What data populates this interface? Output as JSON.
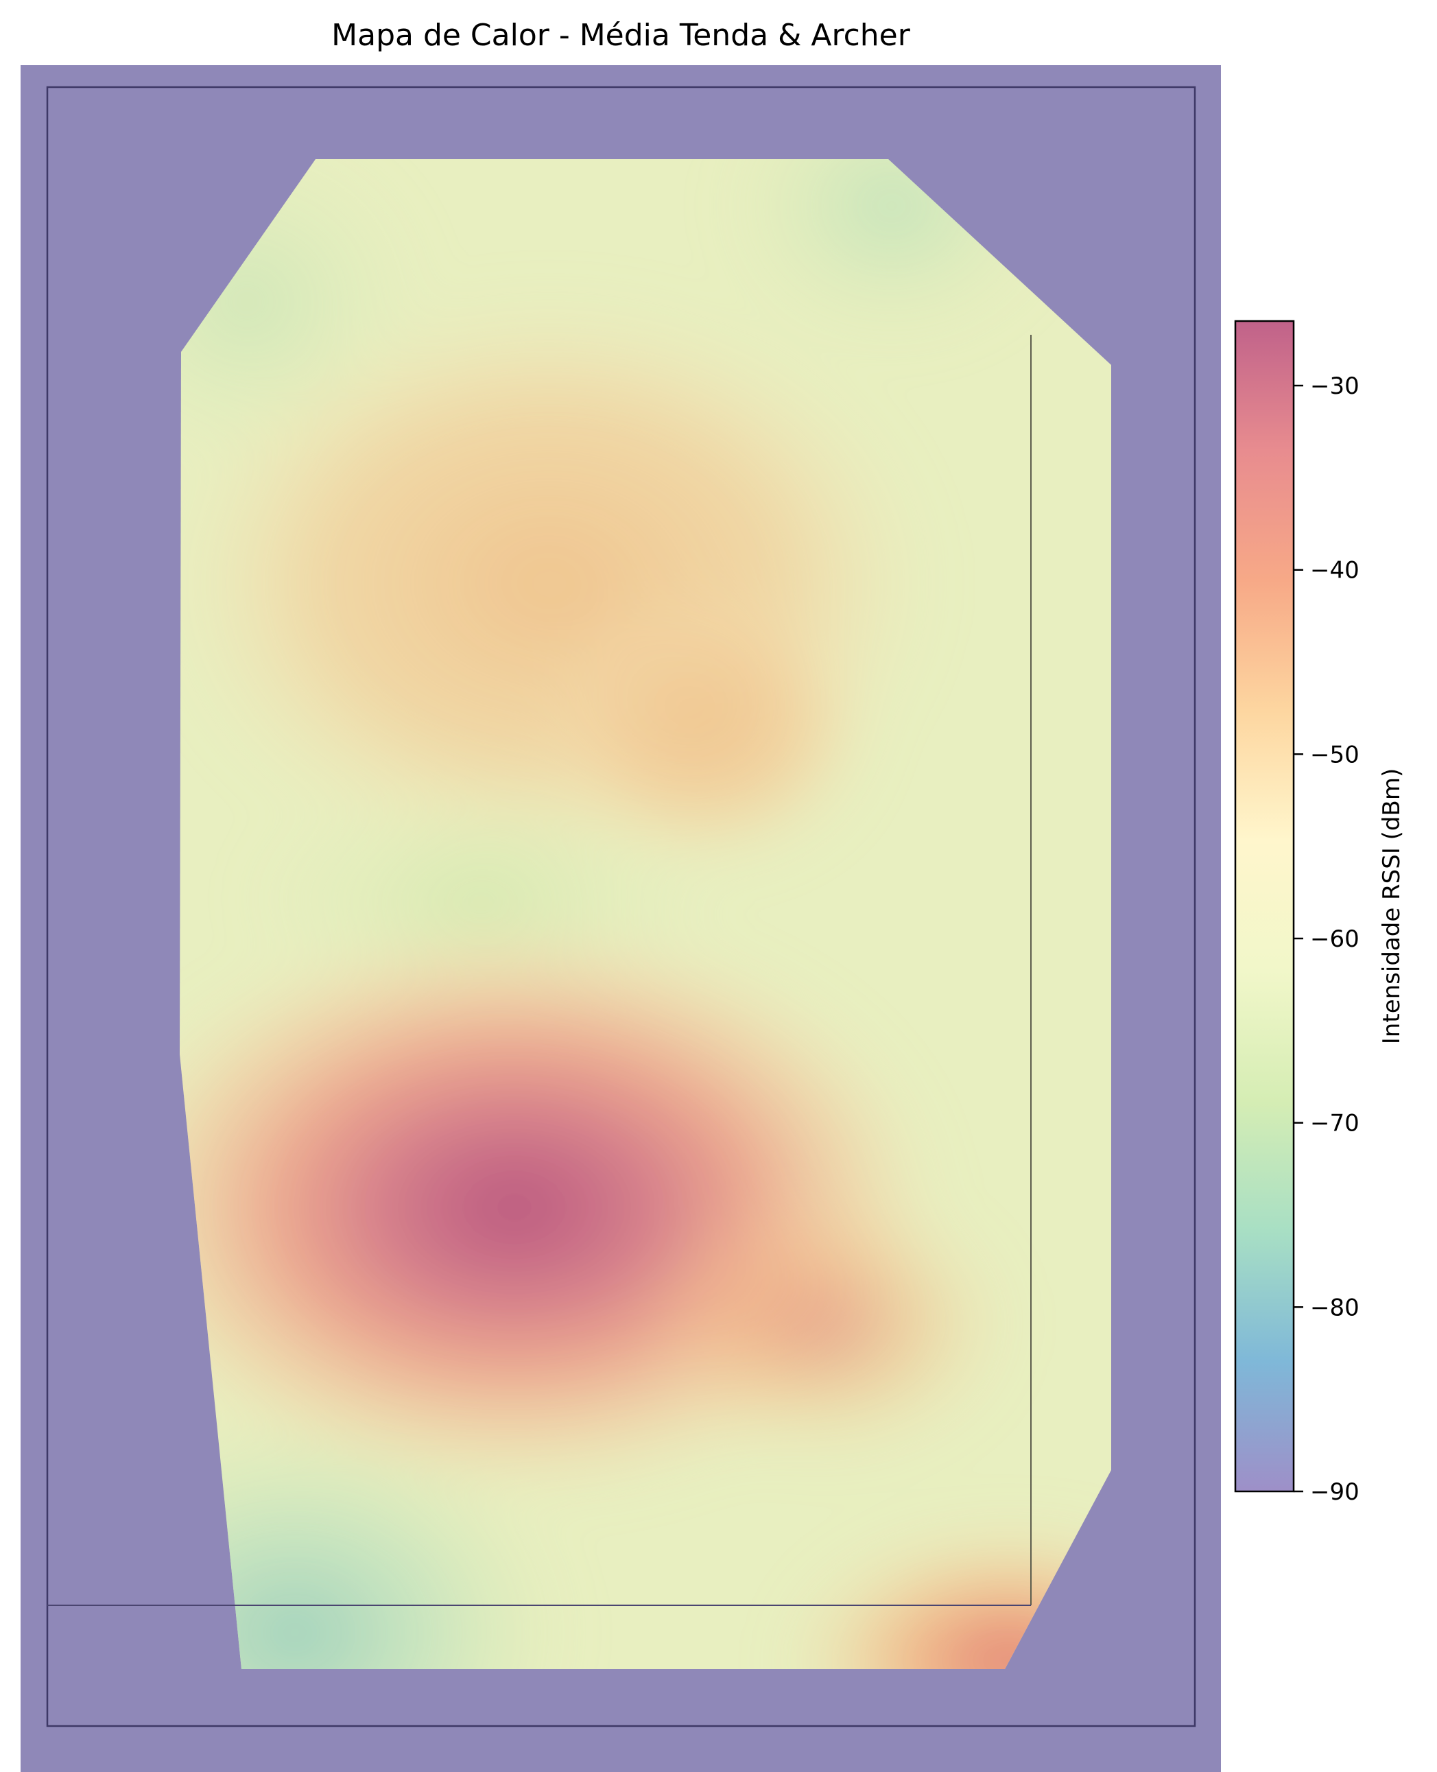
{
  "chart_data": {
    "type": "heatmap",
    "title": "Mapa de Calor - Média Tenda & Archer",
    "colorbar": {
      "label": "Intensidade RSSI (dBm)",
      "range": [
        -90,
        -26.5
      ],
      "ticks": [
        -30,
        -40,
        -50,
        -60,
        -70,
        -80,
        -90
      ],
      "tick_labels": [
        "−30",
        "−40",
        "−50",
        "−60",
        "−70",
        "−80",
        "−90"
      ],
      "colormap": "Spectral_r",
      "colormap_stops": [
        "#9e8fc8",
        "#7fb8d8",
        "#a8dfc4",
        "#d5edb4",
        "#f1f7c9",
        "#fff6cc",
        "#fdd6a0",
        "#f7a987",
        "#e88c8f",
        "#c0628a"
      ]
    },
    "background_color": "#8f88b8",
    "hotspots": [
      {
        "name": "upper",
        "value": -44
      },
      {
        "name": "middle",
        "value": -66
      },
      {
        "name": "lower",
        "value": -28
      },
      {
        "name": "bottom-right",
        "value": -38
      },
      {
        "name": "bottom-left",
        "value": -74
      },
      {
        "name": "top-right",
        "value": -70
      }
    ],
    "grid": false,
    "axes_visible": false
  }
}
